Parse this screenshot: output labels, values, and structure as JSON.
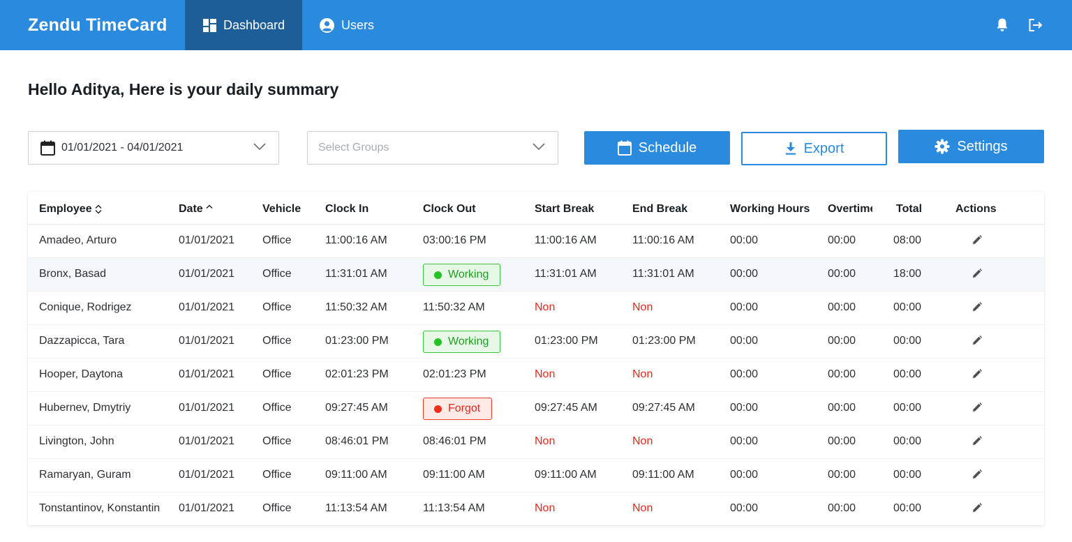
{
  "app": {
    "title": "Zendu TimeCard"
  },
  "nav": {
    "dashboard": "Dashboard",
    "users": "Users"
  },
  "greeting": "Hello Aditya, Here is your daily summary",
  "filters": {
    "date_range": "01/01/2021 - 04/01/2021",
    "groups_placeholder": "Select Groups"
  },
  "buttons": {
    "schedule": "Schedule",
    "export": "Export",
    "settings": "Settings"
  },
  "colors": {
    "primary": "#2a8ade",
    "nav_active": "#1d5d98",
    "working": "#22c322",
    "forgot": "#ec2f18",
    "non": "#e0281c"
  },
  "table": {
    "headers": [
      "Employee",
      "Date",
      "Vehicle",
      "Clock In",
      "Clock Out",
      "Start Break",
      "End Break",
      "Working Hours",
      "Overtime",
      "Total",
      "Actions"
    ],
    "rows": [
      {
        "employee": "Amadeo, Arturo",
        "date": "01/01/2021",
        "vehicle": "Office",
        "clock_in": "11:00:16 AM",
        "clock_out": "03:00:16 PM",
        "start_break": "11:00:16 AM",
        "end_break": "11:00:16 AM",
        "working_hours": "00:00",
        "overtime": "00:00",
        "total": "08:00"
      },
      {
        "employee": "Bronx, Basad",
        "date": "01/01/2021",
        "vehicle": "Office",
        "clock_in": "11:31:01 AM",
        "clock_out": "Working",
        "start_break": "11:31:01 AM",
        "end_break": "11:31:01 AM",
        "working_hours": "00:00",
        "overtime": "00:00",
        "total": "18:00"
      },
      {
        "employee": "Conique, Rodrigez",
        "date": "01/01/2021",
        "vehicle": "Office",
        "clock_in": "11:50:32 AM",
        "clock_out": "11:50:32 AM",
        "start_break": "Non",
        "end_break": "Non",
        "working_hours": "00:00",
        "overtime": "00:00",
        "total": "00:00"
      },
      {
        "employee": "Dazzapicca, Tara",
        "date": "01/01/2021",
        "vehicle": "Office",
        "clock_in": "01:23:00 PM",
        "clock_out": "Working",
        "start_break": "01:23:00 PM",
        "end_break": "01:23:00 PM",
        "working_hours": "00:00",
        "overtime": "00:00",
        "total": "00:00"
      },
      {
        "employee": "Hooper, Daytona",
        "date": "01/01/2021",
        "vehicle": "Office",
        "clock_in": "02:01:23 PM",
        "clock_out": "02:01:23 PM",
        "start_break": "Non",
        "end_break": "Non",
        "working_hours": "00:00",
        "overtime": "00:00",
        "total": "00:00"
      },
      {
        "employee": "Hubernev, Dmytriy",
        "date": "01/01/2021",
        "vehicle": "Office",
        "clock_in": "09:27:45 AM",
        "clock_out": "Forgot",
        "start_break": "09:27:45 AM",
        "end_break": "09:27:45 AM",
        "working_hours": "00:00",
        "overtime": "00:00",
        "total": "00:00"
      },
      {
        "employee": "Livington, John",
        "date": "01/01/2021",
        "vehicle": "Office",
        "clock_in": "08:46:01 PM",
        "clock_out": "08:46:01 PM",
        "start_break": "Non",
        "end_break": "Non",
        "working_hours": "00:00",
        "overtime": "00:00",
        "total": "00:00"
      },
      {
        "employee": "Ramaryan, Guram",
        "date": "01/01/2021",
        "vehicle": "Office",
        "clock_in": "09:11:00 AM",
        "clock_out": "09:11:00 AM",
        "start_break": "09:11:00 AM",
        "end_break": "09:11:00 AM",
        "working_hours": "00:00",
        "overtime": "00:00",
        "total": "00:00"
      },
      {
        "employee": "Tonstantinov, Konstantin",
        "date": "01/01/2021",
        "vehicle": "Office",
        "clock_in": "11:13:54 AM",
        "clock_out": "11:13:54 AM",
        "start_break": "Non",
        "end_break": "Non",
        "working_hours": "00:00",
        "overtime": "00:00",
        "total": "00:00"
      }
    ]
  }
}
